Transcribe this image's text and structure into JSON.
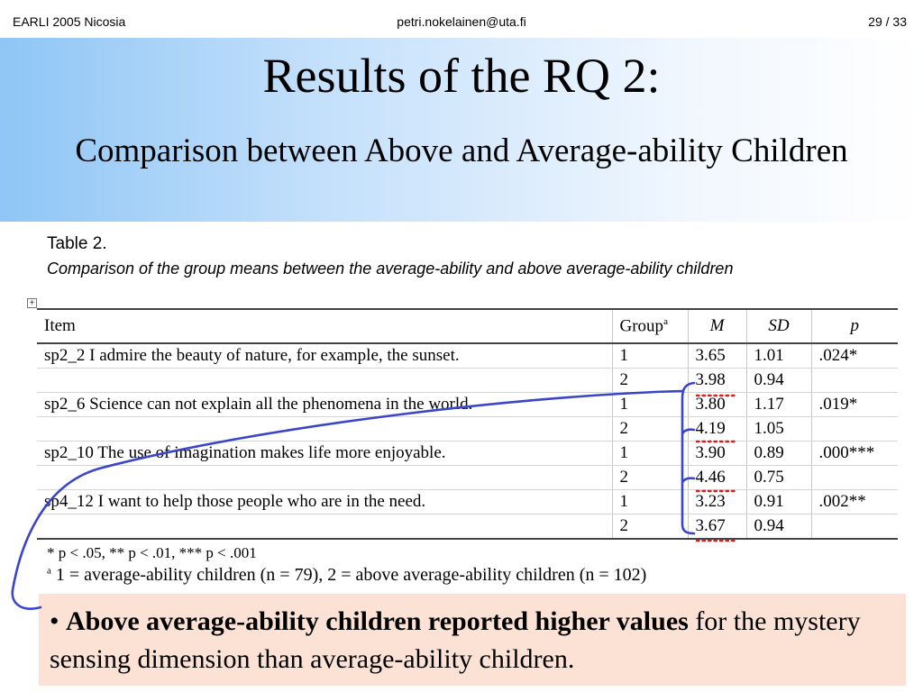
{
  "header": {
    "left": "EARLI 2005 Nicosia",
    "center": "petri.nokelainen@uta.fi",
    "right": "29 / 33"
  },
  "slide": {
    "title": "Results of the RQ 2:",
    "subtitle": "Comparison between Above and Average-ability Children"
  },
  "table": {
    "caption": "Table 2.",
    "description": "Comparison of the group means between the average-ability and above average-ability children",
    "headers": {
      "item": "Item",
      "group": "Group",
      "group_sup": "a",
      "m": "M",
      "sd": "SD",
      "p": "p"
    },
    "rows": [
      {
        "item": "sp2_2 I admire the beauty of nature, for example, the sunset.",
        "group": "1",
        "m": "3.65",
        "sd": "1.01",
        "p": ".024*"
      },
      {
        "item": "",
        "group": "2",
        "m": "3.98",
        "sd": "0.94",
        "p": ""
      },
      {
        "item": "sp2_6 Science can not explain all the phenomena in the world.",
        "group": "1",
        "m": "3.80",
        "sd": "1.17",
        "p": ".019*"
      },
      {
        "item": "",
        "group": "2",
        "m": "4.19",
        "sd": "1.05",
        "p": ""
      },
      {
        "item": "sp2_10 The use of imagination makes life more enjoyable.",
        "group": "1",
        "m": "3.90",
        "sd": "0.89",
        "p": ".000***"
      },
      {
        "item": "",
        "group": "2",
        "m": "4.46",
        "sd": "0.75",
        "p": ""
      },
      {
        "item": "sp4_12 I want to help those people who are in the need.",
        "group": "1",
        "m": "3.23",
        "sd": "0.91",
        "p": ".002**"
      },
      {
        "item": "",
        "group": "2",
        "m": "3.67",
        "sd": "0.94",
        "p": ""
      }
    ],
    "note1": "* p < .05, ** p < .01, *** p < .001",
    "note2_sup": "a",
    "note2_text": " 1 = average-ability children (n = 79), 2 = above average-ability children (n = 102)"
  },
  "callout": {
    "bullet": "• ",
    "bold": "Above average-ability children reported higher values",
    "rest": " for the mystery sensing dimension than average-ability children."
  },
  "colors": {
    "bracket": "#3a45c8",
    "dots": "#d81e1e",
    "callout_bg": "#fce2d4",
    "title_gradient_start": "#8fc6f5"
  }
}
